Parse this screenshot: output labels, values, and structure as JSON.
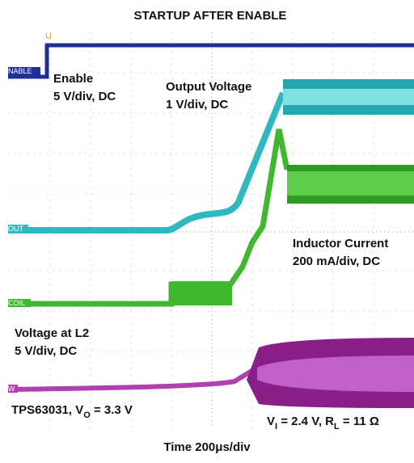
{
  "title": "STARTUP AFTER ENABLE",
  "channels": {
    "enable": {
      "tag": "NABLE",
      "name": "Enable",
      "scale": "5 V/div, DC"
    },
    "output": {
      "tag": "OUT",
      "name": "Output Voltage",
      "scale": "1 V/div, DC"
    },
    "inductor": {
      "tag": "COIL",
      "name": "Inductor Current",
      "scale": "200 mA/div, DC"
    },
    "l2": {
      "tag": "W",
      "name": "Voltage at L2",
      "scale": "5 V/div, DC"
    }
  },
  "trigger_marker": "U",
  "conditions": {
    "left": {
      "main": "TPS63031, V",
      "sub": "O",
      "rest": " = 3.3 V"
    },
    "right": {
      "main": "V",
      "sub": "I",
      "mid": " = 2.4 V, R",
      "sub2": "L",
      "rest": " = 11 Ω"
    }
  },
  "time_scale": "Time 200μs/div"
}
